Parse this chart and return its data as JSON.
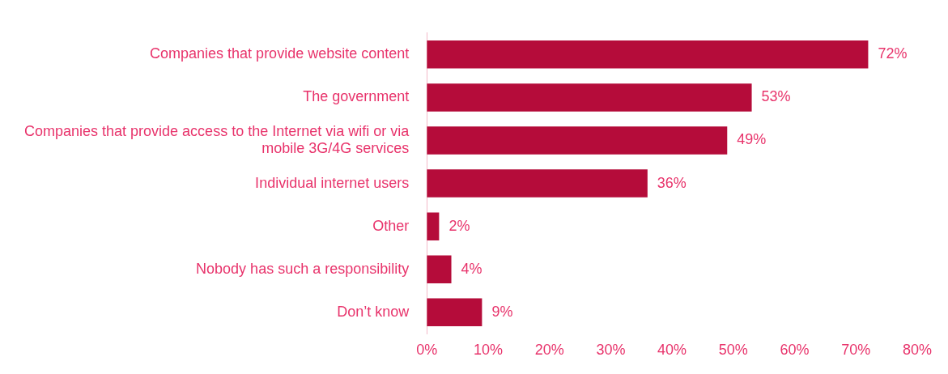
{
  "chart_data": {
    "type": "bar",
    "orientation": "horizontal",
    "categories": [
      "Companies that provide website content",
      "The government",
      "Companies that provide access to the Internet via wifi or via mobile 3G/4G services",
      "Individual internet users",
      "Other",
      "Nobody has such a responsibility",
      "Don’t know"
    ],
    "values": [
      72,
      53,
      49,
      36,
      2,
      4,
      9
    ],
    "value_labels": [
      "72%",
      "53%",
      "49%",
      "36%",
      "2%",
      "4%",
      "9%"
    ],
    "color": "#b50c3a",
    "xlim": [
      0,
      80
    ],
    "xticks": [
      {
        "value": 0,
        "label": "0%"
      },
      {
        "value": 10,
        "label": "10%"
      },
      {
        "value": 20,
        "label": "20%"
      },
      {
        "value": 30,
        "label": "30%"
      },
      {
        "value": 40,
        "label": "40%"
      },
      {
        "value": 50,
        "label": "50%"
      },
      {
        "value": 60,
        "label": "60%"
      },
      {
        "value": 70,
        "label": "70%"
      },
      {
        "value": 80,
        "label": "80%"
      }
    ],
    "grid": false,
    "legend": false
  }
}
